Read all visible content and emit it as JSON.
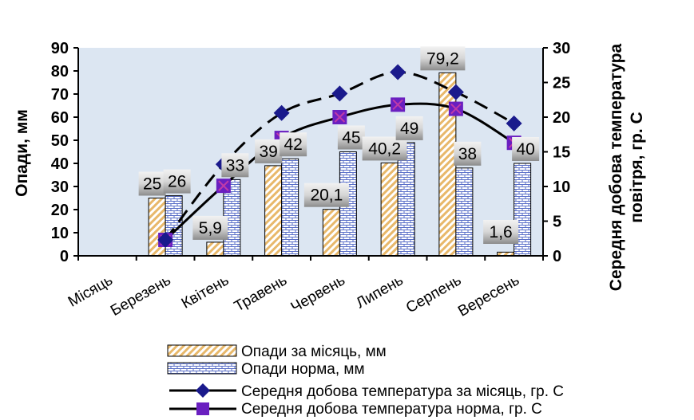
{
  "chart_data": {
    "type": "bar",
    "categories": [
      "Місяць",
      "Березень",
      "Квітень",
      "Травень",
      "Червень",
      "Липень",
      "Серпень",
      "Вересень"
    ],
    "ylabel": "Опади, мм",
    "y2label_line1": "Середня добова температура",
    "y2label_line2": "повітря, гр. С",
    "ylim": [
      0,
      90
    ],
    "yticks": [
      0,
      10,
      20,
      30,
      40,
      50,
      60,
      70,
      80,
      90
    ],
    "y2lim": [
      0,
      30
    ],
    "y2ticks": [
      0,
      5,
      10,
      15,
      20,
      25,
      30
    ],
    "grid": false,
    "legend_position": "bottom",
    "series": [
      {
        "name": "Опади за місяць, мм",
        "kind": "bar",
        "axis": "left",
        "values": [
          null,
          25,
          5.9,
          39,
          20.1,
          40.2,
          79.2,
          1.6
        ],
        "labels": [
          null,
          "25",
          "5,9",
          "39",
          "20,1",
          "40,2",
          "79,2",
          "1,6"
        ]
      },
      {
        "name": "Опади норма, мм",
        "kind": "bar",
        "axis": "left",
        "values": [
          null,
          26,
          33,
          42,
          45,
          49,
          38,
          40
        ],
        "labels": [
          null,
          "26",
          "33",
          "42",
          "45",
          "49",
          "38",
          "40"
        ]
      },
      {
        "name": "Середня добова температура за місяць, гр. С",
        "kind": "line",
        "axis": "right",
        "values": [
          null,
          2.3,
          13.2,
          20.6,
          23.4,
          26.5,
          23.6,
          19.1
        ]
      },
      {
        "name": "Середня добова температура норма, гр. С",
        "kind": "line",
        "axis": "right",
        "values": [
          null,
          2.3,
          10.1,
          17.0,
          20.0,
          21.8,
          21.2,
          16.3
        ]
      }
    ]
  },
  "colors": {
    "plot_bg": "#dce6f2",
    "bar_monthly": "#e8b86a",
    "bar_norm": "#7b8fd6",
    "line_monthly": "#000000",
    "marker_monthly": "#1a1a8c",
    "line_norm": "#000000",
    "marker_norm": "#6a1fc0",
    "label_box": "#c8c8c8"
  }
}
